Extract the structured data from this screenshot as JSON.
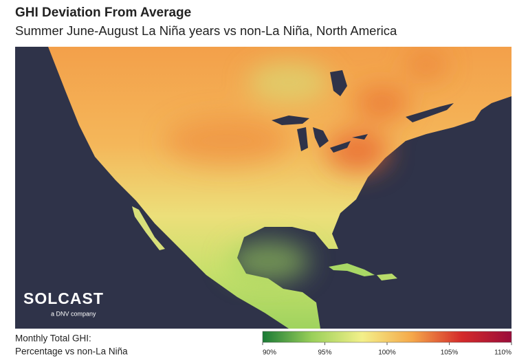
{
  "header": {
    "title": "GHI Deviation From Average",
    "subtitle": "Summer June-August La Niña years vs non-La Niña, North America"
  },
  "logo": {
    "name": "SOLCAST",
    "tagline": "a DNV company"
  },
  "legend": {
    "label_lines": [
      "Monthly Total GHI:",
      "Percentage vs non-La Niña"
    ],
    "range": [
      90,
      110
    ],
    "colors": [
      "#1a7a35",
      "#9bd05a",
      "#f3f08a",
      "#f5a84a",
      "#d42a2a",
      "#9a0d3a"
    ],
    "ticks": [
      {
        "value": 90,
        "label": "90%"
      },
      {
        "value": 95,
        "label": "95%"
      },
      {
        "value": 100,
        "label": "100%"
      },
      {
        "value": 105,
        "label": "105%"
      },
      {
        "value": 110,
        "label": "110%"
      }
    ]
  }
}
